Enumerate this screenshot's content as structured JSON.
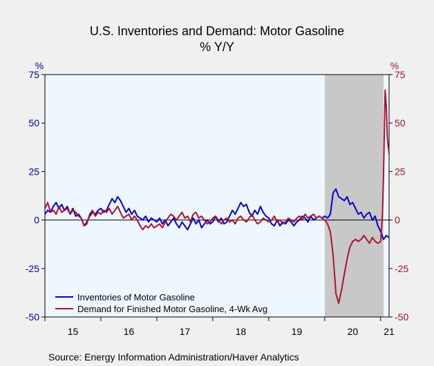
{
  "chart_data": {
    "type": "line",
    "title": "U.S. Inventories and Demand: Motor Gasoline",
    "subtitle": "% Y/Y",
    "left_axis_unit": "%",
    "right_axis_unit": "%",
    "ylim": [
      -50,
      75
    ],
    "yticks": [
      75,
      50,
      25,
      0,
      -25,
      -50
    ],
    "x_range": [
      2015.0,
      2021.15
    ],
    "x_tick_labels": [
      "15",
      "16",
      "17",
      "18",
      "19",
      "20",
      "21"
    ],
    "recession_shading": {
      "start": 2020.0,
      "end": 2021.05
    },
    "legend_position": "bottom-left",
    "series": [
      {
        "name": "Inventories of Motor Gasoline",
        "axis": "left",
        "color": "#0000cc",
        "points": [
          [
            2015.0,
            3
          ],
          [
            2015.05,
            5
          ],
          [
            2015.1,
            4
          ],
          [
            2015.15,
            7
          ],
          [
            2015.2,
            9
          ],
          [
            2015.25,
            6
          ],
          [
            2015.3,
            8
          ],
          [
            2015.35,
            5
          ],
          [
            2015.4,
            7
          ],
          [
            2015.45,
            3
          ],
          [
            2015.5,
            6
          ],
          [
            2015.55,
            2
          ],
          [
            2015.6,
            3
          ],
          [
            2015.65,
            1
          ],
          [
            2015.7,
            -3
          ],
          [
            2015.75,
            -1
          ],
          [
            2015.8,
            2
          ],
          [
            2015.85,
            4
          ],
          [
            2015.9,
            3
          ],
          [
            2015.95,
            5
          ],
          [
            2016.0,
            6
          ],
          [
            2016.05,
            4
          ],
          [
            2016.1,
            5
          ],
          [
            2016.15,
            8
          ],
          [
            2016.2,
            11
          ],
          [
            2016.25,
            9
          ],
          [
            2016.3,
            12
          ],
          [
            2016.35,
            10
          ],
          [
            2016.4,
            7
          ],
          [
            2016.45,
            4
          ],
          [
            2016.5,
            6
          ],
          [
            2016.55,
            3
          ],
          [
            2016.6,
            5
          ],
          [
            2016.65,
            2
          ],
          [
            2016.7,
            1
          ],
          [
            2016.75,
            0
          ],
          [
            2016.8,
            2
          ],
          [
            2016.85,
            -1
          ],
          [
            2016.9,
            1
          ],
          [
            2016.95,
            0
          ],
          [
            2017.0,
            -1
          ],
          [
            2017.05,
            1
          ],
          [
            2017.1,
            -2
          ],
          [
            2017.15,
            0
          ],
          [
            2017.2,
            -3
          ],
          [
            2017.25,
            -1
          ],
          [
            2017.3,
            1
          ],
          [
            2017.35,
            -2
          ],
          [
            2017.4,
            -4
          ],
          [
            2017.45,
            -1
          ],
          [
            2017.5,
            -3
          ],
          [
            2017.55,
            -5
          ],
          [
            2017.6,
            -2
          ],
          [
            2017.65,
            1
          ],
          [
            2017.7,
            -2
          ],
          [
            2017.75,
            0
          ],
          [
            2017.8,
            -4
          ],
          [
            2017.85,
            -2
          ],
          [
            2017.9,
            0
          ],
          [
            2017.95,
            -2
          ],
          [
            2018.0,
            -1
          ],
          [
            2018.05,
            2
          ],
          [
            2018.1,
            -1
          ],
          [
            2018.15,
            1
          ],
          [
            2018.2,
            -2
          ],
          [
            2018.25,
            -1
          ],
          [
            2018.3,
            2
          ],
          [
            2018.35,
            5
          ],
          [
            2018.4,
            3
          ],
          [
            2018.45,
            6
          ],
          [
            2018.5,
            9
          ],
          [
            2018.55,
            7
          ],
          [
            2018.6,
            8
          ],
          [
            2018.65,
            4
          ],
          [
            2018.7,
            2
          ],
          [
            2018.75,
            5
          ],
          [
            2018.8,
            3
          ],
          [
            2018.85,
            7
          ],
          [
            2018.9,
            4
          ],
          [
            2018.95,
            2
          ],
          [
            2019.0,
            1
          ],
          [
            2019.05,
            -2
          ],
          [
            2019.1,
            -3
          ],
          [
            2019.15,
            0
          ],
          [
            2019.2,
            -3
          ],
          [
            2019.25,
            -1
          ],
          [
            2019.3,
            -2
          ],
          [
            2019.35,
            0
          ],
          [
            2019.4,
            -1
          ],
          [
            2019.45,
            -3
          ],
          [
            2019.5,
            -1
          ],
          [
            2019.55,
            0
          ],
          [
            2019.6,
            2
          ],
          [
            2019.65,
            1
          ],
          [
            2019.7,
            -1
          ],
          [
            2019.75,
            2
          ],
          [
            2019.8,
            0
          ],
          [
            2019.85,
            1
          ],
          [
            2019.9,
            2
          ],
          [
            2019.95,
            1
          ],
          [
            2020.0,
            2
          ],
          [
            2020.05,
            1
          ],
          [
            2020.1,
            3
          ],
          [
            2020.15,
            14
          ],
          [
            2020.2,
            16
          ],
          [
            2020.25,
            12
          ],
          [
            2020.3,
            11
          ],
          [
            2020.35,
            10
          ],
          [
            2020.4,
            12
          ],
          [
            2020.45,
            8
          ],
          [
            2020.5,
            9
          ],
          [
            2020.55,
            6
          ],
          [
            2020.6,
            3
          ],
          [
            2020.65,
            4
          ],
          [
            2020.7,
            1
          ],
          [
            2020.75,
            3
          ],
          [
            2020.8,
            4
          ],
          [
            2020.85,
            0
          ],
          [
            2020.9,
            2
          ],
          [
            2020.95,
            -3
          ],
          [
            2021.0,
            -6
          ],
          [
            2021.05,
            -10
          ],
          [
            2021.1,
            -8
          ],
          [
            2021.15,
            -9
          ]
        ]
      },
      {
        "name": "Demand for Finished Motor Gasoline, 4-Wk Avg",
        "axis": "right",
        "color": "#b0102a",
        "points": [
          [
            2015.0,
            6
          ],
          [
            2015.05,
            9
          ],
          [
            2015.1,
            4
          ],
          [
            2015.15,
            5
          ],
          [
            2015.2,
            3
          ],
          [
            2015.25,
            7
          ],
          [
            2015.3,
            4
          ],
          [
            2015.35,
            5
          ],
          [
            2015.4,
            6
          ],
          [
            2015.45,
            3
          ],
          [
            2015.5,
            5
          ],
          [
            2015.55,
            4
          ],
          [
            2015.6,
            2
          ],
          [
            2015.65,
            1
          ],
          [
            2015.7,
            -3
          ],
          [
            2015.75,
            -2
          ],
          [
            2015.8,
            3
          ],
          [
            2015.85,
            5
          ],
          [
            2015.9,
            2
          ],
          [
            2015.95,
            4
          ],
          [
            2016.0,
            3
          ],
          [
            2016.05,
            5
          ],
          [
            2016.1,
            4
          ],
          [
            2016.15,
            6
          ],
          [
            2016.2,
            3
          ],
          [
            2016.25,
            5
          ],
          [
            2016.3,
            7
          ],
          [
            2016.35,
            4
          ],
          [
            2016.4,
            1
          ],
          [
            2016.45,
            2
          ],
          [
            2016.5,
            3
          ],
          [
            2016.55,
            0
          ],
          [
            2016.6,
            2
          ],
          [
            2016.65,
            0
          ],
          [
            2016.7,
            -3
          ],
          [
            2016.75,
            -5
          ],
          [
            2016.8,
            -3
          ],
          [
            2016.85,
            -4
          ],
          [
            2016.9,
            -2
          ],
          [
            2016.95,
            -4
          ],
          [
            2017.0,
            -3
          ],
          [
            2017.05,
            -2
          ],
          [
            2017.1,
            -4
          ],
          [
            2017.15,
            -1
          ],
          [
            2017.2,
            1
          ],
          [
            2017.25,
            3
          ],
          [
            2017.3,
            2
          ],
          [
            2017.35,
            0
          ],
          [
            2017.4,
            2
          ],
          [
            2017.45,
            4
          ],
          [
            2017.5,
            1
          ],
          [
            2017.55,
            2
          ],
          [
            2017.6,
            -1
          ],
          [
            2017.65,
            3
          ],
          [
            2017.7,
            4
          ],
          [
            2017.75,
            1
          ],
          [
            2017.8,
            2
          ],
          [
            2017.85,
            0
          ],
          [
            2017.9,
            -2
          ],
          [
            2017.95,
            -1
          ],
          [
            2018.0,
            1
          ],
          [
            2018.05,
            2
          ],
          [
            2018.1,
            0
          ],
          [
            2018.15,
            -2
          ],
          [
            2018.2,
            0
          ],
          [
            2018.25,
            1
          ],
          [
            2018.3,
            -1
          ],
          [
            2018.35,
            0
          ],
          [
            2018.4,
            -2
          ],
          [
            2018.45,
            1
          ],
          [
            2018.5,
            2
          ],
          [
            2018.55,
            0
          ],
          [
            2018.6,
            -1
          ],
          [
            2018.65,
            1
          ],
          [
            2018.7,
            3
          ],
          [
            2018.75,
            0
          ],
          [
            2018.8,
            -2
          ],
          [
            2018.85,
            -1
          ],
          [
            2018.9,
            1
          ],
          [
            2018.95,
            0
          ],
          [
            2019.0,
            -1
          ],
          [
            2019.05,
            0
          ],
          [
            2019.1,
            2
          ],
          [
            2019.15,
            -1
          ],
          [
            2019.2,
            0
          ],
          [
            2019.25,
            -2
          ],
          [
            2019.3,
            -1
          ],
          [
            2019.35,
            1
          ],
          [
            2019.4,
            0
          ],
          [
            2019.45,
            -1
          ],
          [
            2019.5,
            1
          ],
          [
            2019.55,
            2
          ],
          [
            2019.6,
            0
          ],
          [
            2019.65,
            3
          ],
          [
            2019.7,
            1
          ],
          [
            2019.75,
            2
          ],
          [
            2019.8,
            3
          ],
          [
            2019.85,
            1
          ],
          [
            2019.9,
            2
          ],
          [
            2019.95,
            1
          ],
          [
            2020.0,
            0
          ],
          [
            2020.05,
            -2
          ],
          [
            2020.1,
            -6
          ],
          [
            2020.15,
            -18
          ],
          [
            2020.2,
            -38
          ],
          [
            2020.25,
            -43
          ],
          [
            2020.3,
            -36
          ],
          [
            2020.35,
            -28
          ],
          [
            2020.4,
            -20
          ],
          [
            2020.45,
            -14
          ],
          [
            2020.5,
            -11
          ],
          [
            2020.55,
            -10
          ],
          [
            2020.6,
            -11
          ],
          [
            2020.65,
            -10
          ],
          [
            2020.7,
            -8
          ],
          [
            2020.75,
            -10
          ],
          [
            2020.8,
            -12
          ],
          [
            2020.85,
            -9
          ],
          [
            2020.9,
            -11
          ],
          [
            2020.95,
            -12
          ],
          [
            2021.0,
            -11
          ],
          [
            2021.03,
            2
          ],
          [
            2021.05,
            22
          ],
          [
            2021.07,
            52
          ],
          [
            2021.08,
            67
          ],
          [
            2021.1,
            58
          ],
          [
            2021.12,
            42
          ],
          [
            2021.15,
            34
          ]
        ]
      }
    ]
  },
  "source_text": "Source:  Energy Information Administration/Haver Analytics",
  "colors": {
    "left_axis": "#0000aa",
    "right_axis": "#a0102a",
    "plot_background": "#eef6ff",
    "shading": "#c8c8c8",
    "page_background": "#f0f0f0"
  }
}
